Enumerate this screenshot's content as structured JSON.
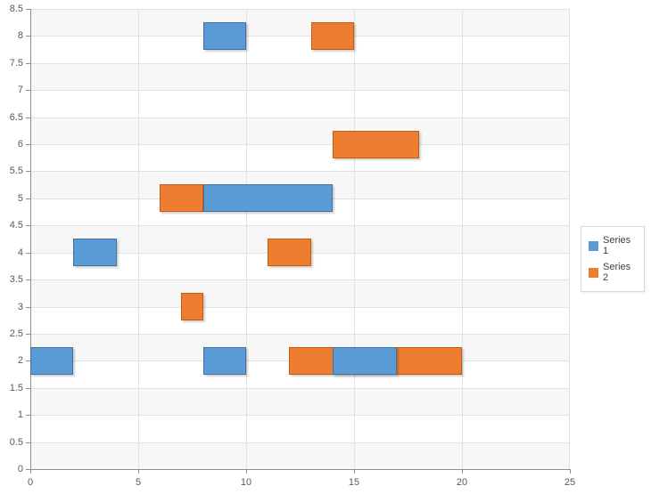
{
  "chart_data": {
    "type": "bar",
    "subtype": "horizontal-range-bar",
    "title": "",
    "xlabel": "",
    "ylabel": "",
    "x_axis": {
      "min": 0,
      "max": 25,
      "tick_interval": 5,
      "tick_labels": [
        "0",
        "5",
        "10",
        "15",
        "20",
        "25"
      ]
    },
    "y_axis": {
      "min": 0,
      "max": 8.5,
      "tick_interval": 0.5,
      "tick_labels": [
        "8.5",
        "8",
        "7.5",
        "7",
        "6.5",
        "6",
        "5.5",
        "5",
        "4.5",
        "4",
        "3.5",
        "3",
        "2.5",
        "2",
        "1.5",
        "1",
        "0.5",
        "0"
      ]
    },
    "bar_thickness_y_units": 0.5,
    "grid": {
      "horizontal_every": 0.5,
      "vertical_every": 5,
      "interlaced_bands": true
    },
    "legend_position": "right",
    "series": [
      {
        "name": "Series 1",
        "color": "#5b9bd5",
        "border_color": "#41719c",
        "points": [
          {
            "y": 2,
            "start": 0,
            "end": 2
          },
          {
            "y": 2,
            "start": 8,
            "end": 10
          },
          {
            "y": 2,
            "start": 14,
            "end": 17
          },
          {
            "y": 4,
            "start": 2,
            "end": 4
          },
          {
            "y": 5,
            "start": 8,
            "end": 14
          },
          {
            "y": 8,
            "start": 8,
            "end": 10
          }
        ]
      },
      {
        "name": "Series 2",
        "color": "#ed7d31",
        "border_color": "#c55a11",
        "points": [
          {
            "y": 2,
            "start": 12,
            "end": 20
          },
          {
            "y": 3,
            "start": 7,
            "end": 8
          },
          {
            "y": 4,
            "start": 11,
            "end": 13
          },
          {
            "y": 5,
            "start": 6,
            "end": 8
          },
          {
            "y": 6,
            "start": 14,
            "end": 18
          },
          {
            "y": 8,
            "start": 13,
            "end": 15
          }
        ]
      }
    ]
  },
  "legend": {
    "items": [
      {
        "label": "Series 1",
        "color": "#5b9bd5"
      },
      {
        "label": "Series 2",
        "color": "#ed7d31"
      }
    ]
  },
  "colors": {
    "axis_line": "#8e8e8e",
    "grid_line": "#e2e2e2",
    "band_fill": "#f7f7f7",
    "tick_label": "#595959",
    "legend_text": "#404040",
    "legend_border": "#d9d9d9",
    "background": "#ffffff"
  }
}
